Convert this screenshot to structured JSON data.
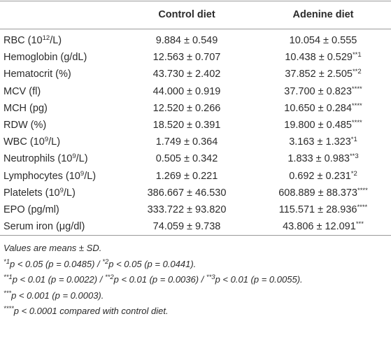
{
  "table": {
    "columns": [
      "Control diet",
      "Adenine diet"
    ],
    "rows": [
      {
        "label": [
          "RBC (10",
          {
            "sup": "12"
          },
          "/L)"
        ],
        "control": [
          "9.884 ± 0.549"
        ],
        "adenine": [
          "10.054 ± 0.555"
        ]
      },
      {
        "label": [
          "Hemoglobin (g/dL)"
        ],
        "control": [
          "12.563 ± 0.707"
        ],
        "adenine": [
          "10.438 ± 0.529",
          {
            "sup": "**1"
          }
        ]
      },
      {
        "label": [
          "Hematocrit (%)"
        ],
        "control": [
          "43.730 ± 2.402"
        ],
        "adenine": [
          "37.852 ± 2.505",
          {
            "sup": "**2"
          }
        ]
      },
      {
        "label": [
          "MCV (fl)"
        ],
        "control": [
          "44.000 ± 0.919"
        ],
        "adenine": [
          "37.700 ± 0.823",
          {
            "sup": "****"
          }
        ]
      },
      {
        "label": [
          "MCH (pg)"
        ],
        "control": [
          "12.520 ± 0.266"
        ],
        "adenine": [
          "10.650 ± 0.284",
          {
            "sup": "****"
          }
        ]
      },
      {
        "label": [
          "RDW (%)"
        ],
        "control": [
          "18.520 ± 0.391"
        ],
        "adenine": [
          "19.800 ± 0.485",
          {
            "sup": "****"
          }
        ]
      },
      {
        "label": [
          "WBC (10",
          {
            "sup": "9"
          },
          "/L)"
        ],
        "control": [
          "1.749 ± 0.364"
        ],
        "adenine": [
          "3.163 ± 1.323",
          {
            "sup": "*1"
          }
        ]
      },
      {
        "label": [
          "Neutrophils (10",
          {
            "sup": "9"
          },
          "/L)"
        ],
        "control": [
          "0.505 ± 0.342"
        ],
        "adenine": [
          "1.833 ± 0.983",
          {
            "sup": "**3"
          }
        ]
      },
      {
        "label": [
          "Lymphocytes (10",
          {
            "sup": "9"
          },
          "/L)"
        ],
        "control": [
          "1.269 ± 0.221"
        ],
        "adenine": [
          "0.692 ± 0.231",
          {
            "sup": "*2"
          }
        ]
      },
      {
        "label": [
          "Platelets (10",
          {
            "sup": "9"
          },
          "/L)"
        ],
        "control": [
          "386.667 ± 46.530"
        ],
        "adenine": [
          "608.889 ± 88.373",
          {
            "sup": "****"
          }
        ]
      },
      {
        "label": [
          "EPO (pg/ml)"
        ],
        "control": [
          "333.722 ± 93.820"
        ],
        "adenine": [
          "115.571 ± 28.936",
          {
            "sup": "****"
          }
        ]
      },
      {
        "label": [
          "Serum iron (μg/dl)"
        ],
        "control": [
          "74.059 ± 9.738"
        ],
        "adenine": [
          "43.806 ± 12.091",
          {
            "sup": "***"
          }
        ]
      }
    ]
  },
  "footnotes": [
    [
      "Values are means ± SD."
    ],
    [
      {
        "sup": "*1"
      },
      "p < 0.05 (p = 0.0485) / ",
      {
        "sup": "*2"
      },
      "p < 0.05 (p = 0.0441)."
    ],
    [
      {
        "sup": "**1"
      },
      "p < 0.01 (p = 0.0022) / ",
      {
        "sup": "**2"
      },
      "p < 0.01 (p = 0.0036) / ",
      {
        "sup": "**3"
      },
      "p < 0.01 (p = 0.0055)."
    ],
    [
      {
        "sup": "***"
      },
      "p < 0.001 (p = 0.0003)."
    ],
    [
      {
        "sup": "****"
      },
      "p < 0.0001 compared with control diet."
    ]
  ]
}
